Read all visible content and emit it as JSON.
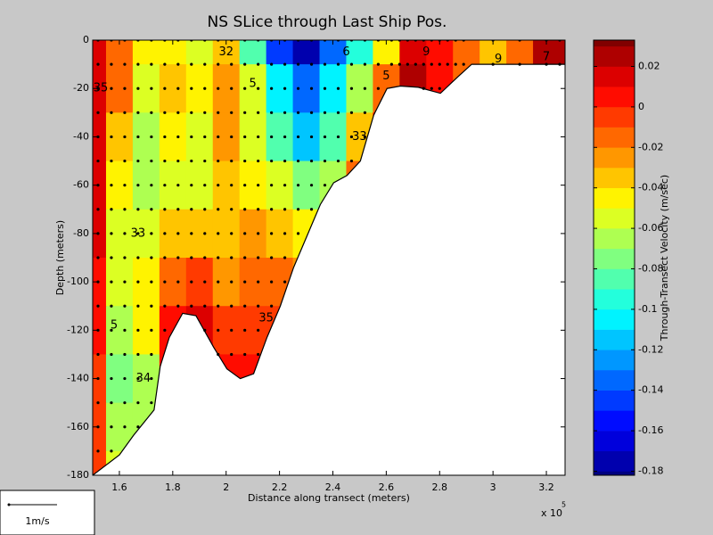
{
  "chart_data": {
    "type": "contour",
    "title": "NS SLice through Last Ship Pos.",
    "xlabel": "Distance along transect (meters)",
    "ylabel": "Depth (meters)",
    "x_multiplier": "x 10",
    "x_exponent": "5",
    "colorbar_label": "Through-Transect Velocity (m/sec)",
    "scale_label": "1m/s",
    "xlim": [
      1.5,
      3.27
    ],
    "xticks": [
      1.6,
      1.8,
      2,
      2.2,
      2.4,
      2.6,
      2.8,
      3,
      3.2
    ],
    "ylim": [
      -180,
      0
    ],
    "yticks": [
      0,
      -20,
      -40,
      -60,
      -80,
      -100,
      -120,
      -140,
      -160,
      -180
    ],
    "clim": [
      -0.182,
      0.033
    ],
    "cticks": [
      0.02,
      0,
      -0.02,
      -0.04,
      -0.06,
      -0.08,
      -0.1,
      -0.12,
      -0.14,
      -0.16,
      -0.18
    ],
    "levels": [
      -0.19,
      -0.18,
      -0.17,
      -0.16,
      -0.15,
      -0.14,
      -0.13,
      -0.12,
      -0.11,
      -0.1,
      -0.09,
      -0.08,
      -0.07,
      -0.06,
      -0.05,
      -0.04,
      -0.03,
      -0.02,
      -0.01,
      0,
      0.01,
      0.02,
      0.03,
      0.04
    ],
    "field": {
      "x": [
        1.5,
        1.6,
        1.7,
        1.8,
        1.9,
        2.0,
        2.1,
        2.2,
        2.3,
        2.4,
        2.5,
        2.6,
        2.7,
        2.8,
        2.9,
        3.0,
        3.1,
        3.2
      ],
      "depth": [
        0,
        -20,
        -40,
        -60,
        -80,
        -100,
        -120,
        -140,
        -160,
        -180
      ],
      "values": [
        [
          0.01,
          -0.02,
          -0.05,
          -0.05,
          -0.06,
          -0.04,
          -0.09,
          -0.15,
          -0.18,
          -0.14,
          -0.1,
          -0.05,
          0.01,
          0.0,
          -0.02,
          -0.04,
          -0.02,
          0.02
        ],
        [
          0.01,
          -0.02,
          -0.06,
          -0.04,
          -0.05,
          -0.03,
          -0.06,
          -0.11,
          -0.14,
          -0.11,
          -0.07,
          -0.02,
          0.02,
          0.0,
          -0.02,
          -0.04,
          -0.02,
          0.02
        ],
        [
          0.01,
          -0.04,
          -0.07,
          -0.05,
          -0.06,
          -0.03,
          -0.06,
          -0.09,
          -0.12,
          -0.09,
          -0.04,
          0.0,
          0.02,
          0.0,
          -0.02,
          -0.04,
          -0.02,
          0.02
        ],
        [
          0.01,
          -0.05,
          -0.07,
          -0.06,
          -0.06,
          -0.04,
          -0.05,
          -0.06,
          -0.08,
          -0.07,
          -0.02,
          0.0,
          0.02,
          0.0,
          -0.02,
          -0.04,
          -0.02,
          0.02
        ],
        [
          0.01,
          -0.06,
          -0.06,
          -0.04,
          -0.04,
          -0.04,
          -0.03,
          -0.04,
          -0.05,
          -0.06,
          -0.02,
          0.0,
          0.02,
          0.0,
          -0.02,
          -0.04,
          -0.02,
          0.02
        ],
        [
          0.0,
          -0.06,
          -0.05,
          -0.02,
          -0.01,
          -0.03,
          -0.02,
          -0.02,
          -0.03,
          -0.06,
          -0.02,
          0.0,
          0.02,
          0.0,
          -0.02,
          -0.04,
          -0.02,
          0.02
        ],
        [
          0.0,
          -0.07,
          -0.05,
          0.0,
          0.01,
          -0.01,
          -0.01,
          -0.01,
          -0.03,
          -0.06,
          -0.02,
          0.0,
          0.02,
          0.0,
          -0.02,
          -0.04,
          -0.02,
          0.02
        ],
        [
          -0.01,
          -0.08,
          -0.07,
          0.0,
          0.01,
          0.0,
          0.0,
          -0.01,
          -0.03,
          -0.06,
          -0.02,
          0.0,
          0.02,
          0.0,
          -0.02,
          -0.04,
          -0.02,
          0.02
        ],
        [
          -0.01,
          -0.07,
          -0.07,
          0.0,
          0.01,
          0.0,
          0.0,
          -0.01,
          -0.03,
          -0.06,
          -0.02,
          0.0,
          0.02,
          0.0,
          -0.02,
          -0.04,
          -0.02,
          0.02
        ],
        [
          -0.01,
          -0.06,
          -0.07,
          0.0,
          0.01,
          0.0,
          0.0,
          -0.01,
          -0.03,
          -0.06,
          -0.02,
          0.0,
          0.02,
          0.0,
          -0.02,
          -0.04,
          -0.02,
          0.02
        ]
      ]
    },
    "bottom": {
      "x": [
        1.5,
        1.6,
        1.653,
        1.73,
        1.753,
        1.787,
        1.837,
        1.887,
        1.953,
        2.003,
        2.053,
        2.103,
        2.153,
        2.203,
        2.253,
        2.303,
        2.353,
        2.403,
        2.453,
        2.503,
        2.553,
        2.603,
        2.653,
        2.72,
        2.803,
        2.87,
        2.92,
        3.27
      ],
      "depth": [
        -180,
        -171.6,
        -163.5,
        -153,
        -135,
        -123,
        -113,
        -114,
        -127,
        -136,
        -140,
        -138,
        -123,
        -110,
        -94,
        -81,
        -68,
        -59,
        -56,
        -50,
        -31,
        -20,
        -19,
        -19.5,
        -22,
        -15,
        -10,
        -10
      ]
    },
    "stations": [
      1.52,
      1.57,
      1.62,
      1.67,
      1.72,
      1.77,
      1.82,
      1.87,
      1.92,
      1.97,
      2.02,
      2.07,
      2.12,
      2.17,
      2.22,
      2.27,
      2.32,
      2.37,
      2.42,
      2.47,
      2.52,
      2.57,
      2.62,
      2.65,
      2.68,
      2.71,
      2.74,
      2.77,
      2.8,
      2.83,
      2.86,
      2.89,
      3.0,
      3.1,
      3.2,
      3.25
    ],
    "sample_depths": [
      0,
      -10,
      -20,
      -30,
      -40,
      -50,
      -60,
      -70,
      -80,
      -90,
      -100,
      -110,
      -120,
      -130,
      -140,
      -150,
      -160,
      -170,
      -180
    ],
    "contour_labels": [
      {
        "text": "35",
        "x": 1.53,
        "y": -20
      },
      {
        "text": "33",
        "x": 1.67,
        "y": -80
      },
      {
        "text": "5",
        "x": 1.58,
        "y": -118
      },
      {
        "text": "34",
        "x": 1.69,
        "y": -140
      },
      {
        "text": "32",
        "x": 2.0,
        "y": -5
      },
      {
        "text": "5",
        "x": 2.1,
        "y": -18
      },
      {
        "text": "6",
        "x": 2.45,
        "y": -5
      },
      {
        "text": "33",
        "x": 2.5,
        "y": -40
      },
      {
        "text": "5",
        "x": 2.6,
        "y": -15
      },
      {
        "text": "9",
        "x": 2.75,
        "y": -5
      },
      {
        "text": "9",
        "x": 3.02,
        "y": -8
      },
      {
        "text": "7",
        "x": 3.2,
        "y": -7
      },
      {
        "text": "35",
        "x": 2.15,
        "y": -115
      }
    ]
  }
}
